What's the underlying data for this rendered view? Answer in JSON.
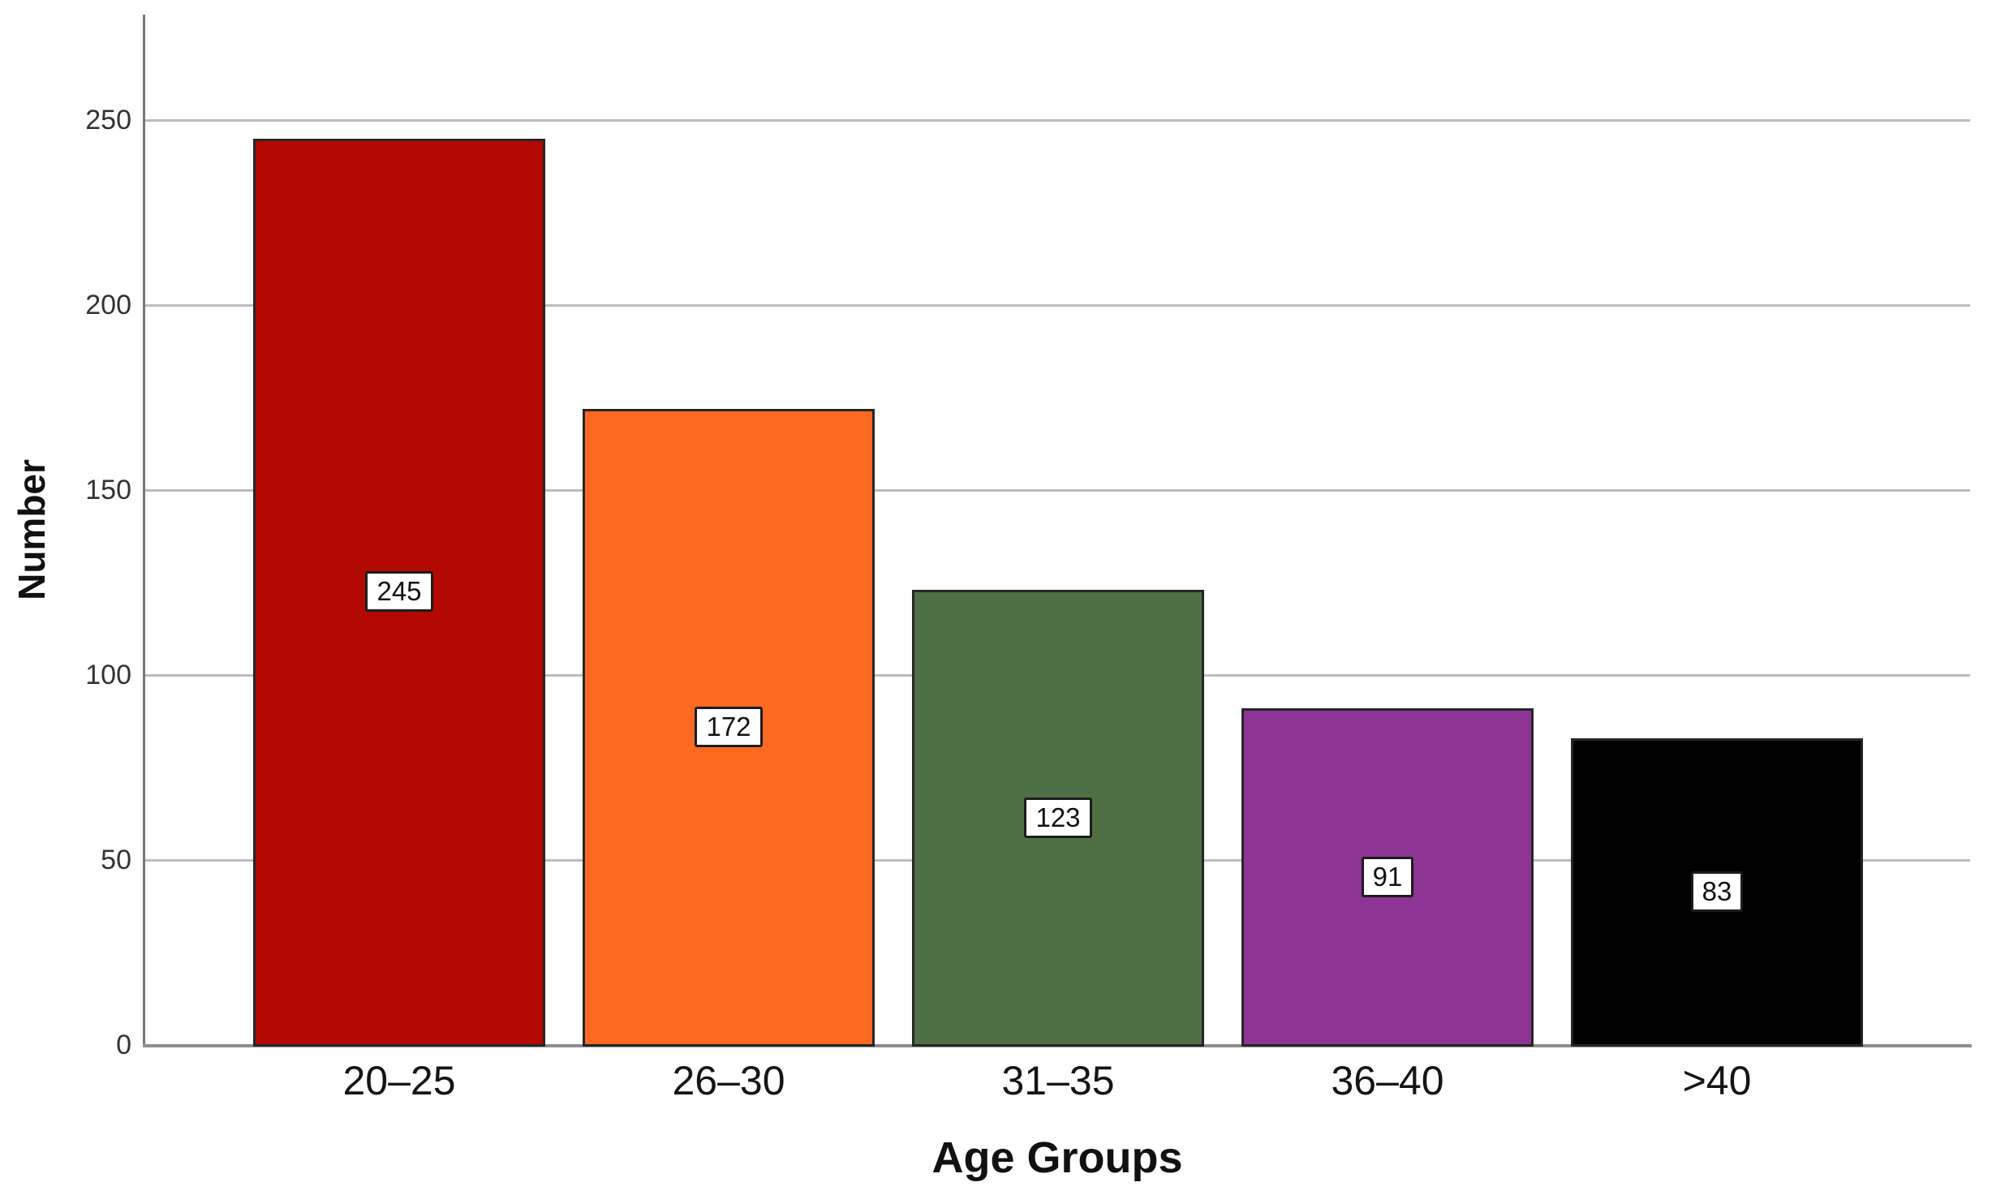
{
  "chart_data": {
    "type": "bar",
    "title": "",
    "xlabel": "Age Groups",
    "ylabel": "Number",
    "categories": [
      "20–25",
      "26–30",
      "31–35",
      "36–40",
      ">40"
    ],
    "values": [
      245,
      172,
      123,
      91,
      83
    ],
    "data_labels": [
      "245",
      "172",
      "123",
      "91",
      "83"
    ],
    "bar_colors": [
      "#b40902",
      "#fb6a20",
      "#4f7044",
      "#8e3494",
      "#000000"
    ],
    "yticks": [
      0,
      50,
      100,
      150,
      200,
      250
    ],
    "ylim": [
      0,
      278
    ],
    "grid": "horizontal gridlines at every labeled y tick, drawn behind bars",
    "legend": "none",
    "data_label_style": "white box with dark border centered at vertical midpoint of each bar",
    "style": {
      "background": "#ffffff",
      "bar_border_color": "#262626",
      "gridline_color": "#bcbcbc",
      "x_axis_line_color": "#8e8e8e",
      "y_axis_line_color": "#787878",
      "label_box_bg": "#ffffff",
      "label_box_border": "#1c1c1c",
      "text_color": "#111111"
    }
  }
}
